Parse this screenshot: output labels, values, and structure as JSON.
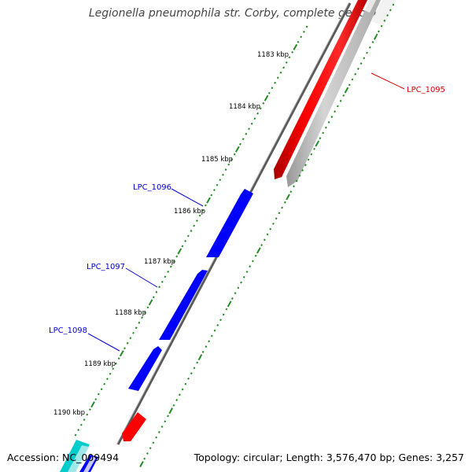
{
  "title": "Legionella pneumophila str. Corby, complete genome",
  "footer": {
    "accession": "Accession: NC_009494",
    "summary": "Topology: circular; Length: 3,576,470 bp; Genes: 3,257"
  },
  "colors": {
    "forward_gene": "#0000ff",
    "reverse_gene": "#ff0000",
    "other_forward_gene": "#00cccc",
    "reverse_track_shadow": "#bbbbbb",
    "backbone": "#666666",
    "ruler_tick": "#228b22",
    "label_blue": "#0000cc",
    "label_red": "#dd0000"
  },
  "ticks": [
    {
      "label": "1183 kbp"
    },
    {
      "label": "1184 kbp"
    },
    {
      "label": "1185 kbp"
    },
    {
      "label": "1186 kbp"
    },
    {
      "label": "1187 kbp"
    },
    {
      "label": "1188 kbp"
    },
    {
      "label": "1189 kbp"
    },
    {
      "label": "1190 kbp"
    }
  ],
  "gene_labels": [
    {
      "name": "LPC_1095",
      "strand": "reverse"
    },
    {
      "name": "LPC_1096",
      "strand": "forward"
    },
    {
      "name": "LPC_1097",
      "strand": "forward"
    },
    {
      "name": "LPC_1098",
      "strand": "forward"
    }
  ]
}
